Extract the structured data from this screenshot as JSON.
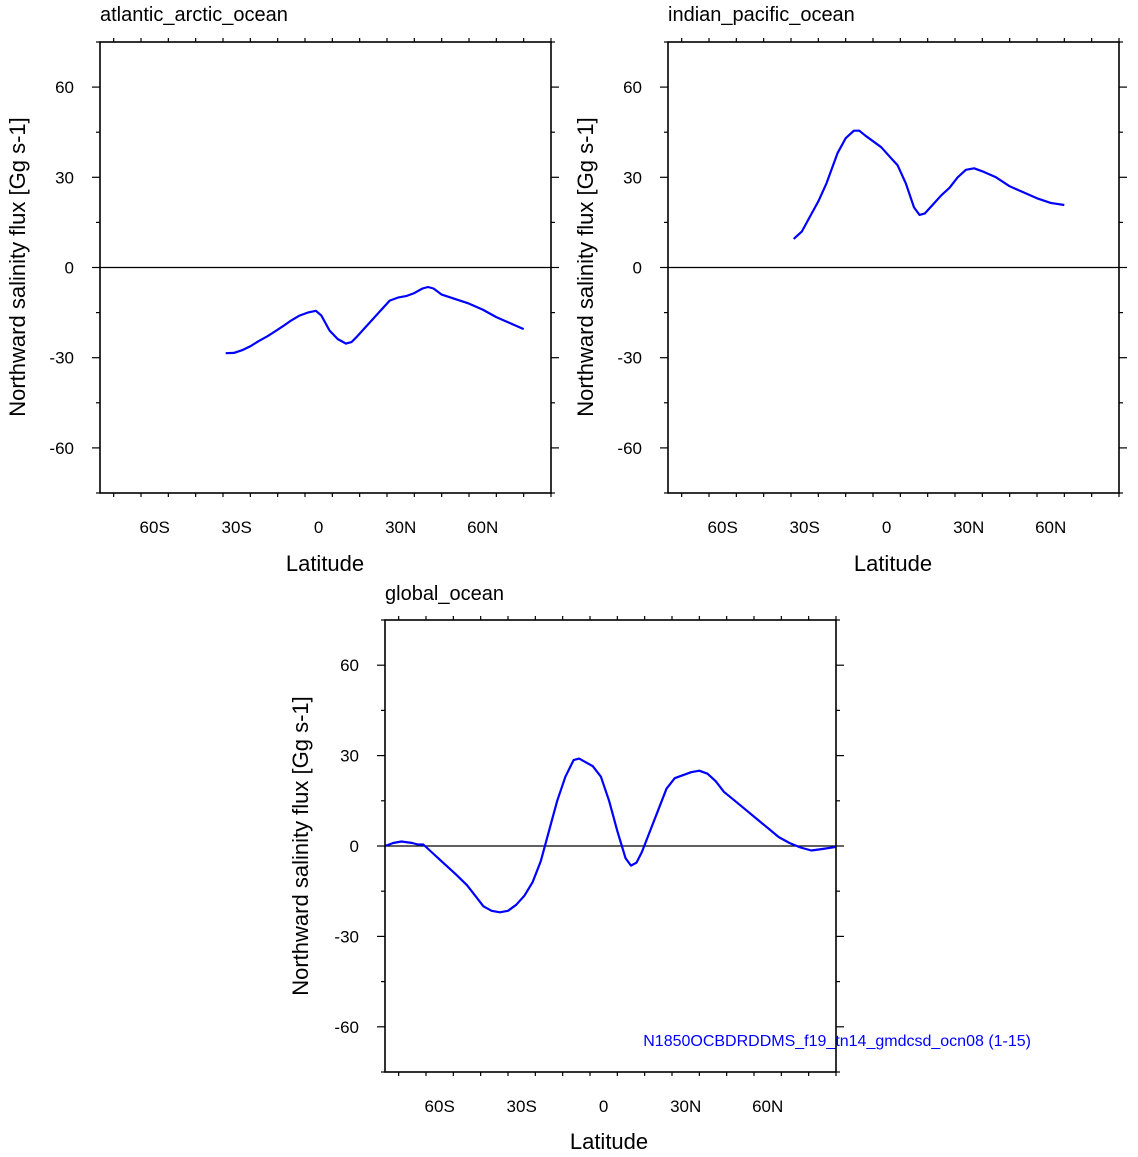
{
  "chart_data": [
    {
      "type": "line",
      "title": "atlantic_arctic_ocean",
      "xlabel": "Latitude",
      "ylabel": "Northward salinity flux [Gg s-1]",
      "xlim": [
        -80,
        85
      ],
      "ylim": [
        -75,
        75
      ],
      "xticks": [
        -60,
        -30,
        0,
        30,
        60
      ],
      "xtick_labels": [
        "60S",
        "30S",
        "0",
        "30N",
        "60N"
      ],
      "yticks": [
        -60,
        -30,
        0,
        30,
        60
      ],
      "ytick_labels": [
        "-60",
        "-30",
        "0",
        "30",
        "60"
      ],
      "zero_line": true,
      "grid": false,
      "series": [
        {
          "color": "#0000ff",
          "x": [
            -34,
            -31,
            -28,
            -25,
            -22,
            -19,
            -16,
            -13,
            -10,
            -7,
            -4,
            -1,
            1,
            4,
            7,
            10,
            12,
            14,
            17,
            20,
            23,
            26,
            29,
            32,
            35,
            38,
            40,
            42,
            45,
            50,
            55,
            60,
            65,
            70,
            75
          ],
          "y": [
            -28.5,
            -28.4,
            -27.5,
            -26.2,
            -24.5,
            -23,
            -21.3,
            -19.5,
            -17.6,
            -16,
            -15,
            -14.4,
            -16,
            -21,
            -23.8,
            -25.3,
            -24.8,
            -23,
            -20,
            -17,
            -14,
            -11,
            -10,
            -9.5,
            -8.5,
            -7,
            -6.5,
            -7,
            -9,
            -10.5,
            -12,
            -14,
            -16.5,
            -18.5,
            -20.5
          ]
        }
      ]
    },
    {
      "type": "line",
      "title": "indian_pacific_ocean",
      "xlabel": "Latitude",
      "ylabel": "Northward salinity flux [Gg s-1]",
      "xlim": [
        -80,
        85
      ],
      "ylim": [
        -75,
        75
      ],
      "xticks": [
        -60,
        -30,
        0,
        30,
        60
      ],
      "xtick_labels": [
        "60S",
        "30S",
        "0",
        "30N",
        "60N"
      ],
      "yticks": [
        -60,
        -30,
        0,
        30,
        60
      ],
      "ytick_labels": [
        "-60",
        "-30",
        "0",
        "30",
        "60"
      ],
      "zero_line": true,
      "grid": false,
      "series": [
        {
          "color": "#0000ff",
          "x": [
            -34,
            -31,
            -28,
            -25,
            -22,
            -20,
            -18,
            -15,
            -12,
            -10,
            -8,
            -5,
            -2,
            1,
            4,
            7,
            10,
            12,
            14,
            17,
            20,
            23,
            26,
            29,
            32,
            35,
            40,
            45,
            50,
            55,
            60,
            65
          ],
          "y": [
            9.5,
            12,
            17,
            22,
            28,
            33,
            38,
            43,
            45.5,
            45.5,
            44,
            42,
            40,
            37,
            34,
            28,
            20,
            17.5,
            18,
            21,
            24,
            26.5,
            30,
            32.5,
            33,
            32,
            30,
            27,
            25,
            23,
            21.5,
            20.8
          ]
        }
      ]
    },
    {
      "type": "line",
      "title": "global_ocean",
      "xlabel": "Latitude",
      "ylabel": "Northward salinity flux [Gg s-1]",
      "xlim": [
        -80,
        85
      ],
      "ylim": [
        -75,
        75
      ],
      "xticks": [
        -60,
        -30,
        0,
        30,
        60
      ],
      "xtick_labels": [
        "60S",
        "30S",
        "0",
        "30N",
        "60N"
      ],
      "yticks": [
        -60,
        -30,
        0,
        30,
        60
      ],
      "ytick_labels": [
        "-60",
        "-30",
        "0",
        "30",
        "60"
      ],
      "zero_line": true,
      "grid": false,
      "annotation": "N1850OCBDRDDMS_f19_tn14_gmdcsd_ocn08 (1-15)",
      "series": [
        {
          "color": "#0000ff",
          "x": [
            -80,
            -77,
            -74,
            -70,
            -68,
            -66,
            -63,
            -60,
            -57,
            -54,
            -50,
            -47,
            -44,
            -41,
            -38,
            -35,
            -32,
            -29,
            -26,
            -23,
            -20,
            -17,
            -14,
            -11,
            -9,
            -7,
            -4,
            -1,
            2,
            5,
            8,
            10,
            12,
            14,
            17,
            20,
            23,
            26,
            29,
            32,
            35,
            38,
            41,
            44,
            48,
            52,
            56,
            60,
            64,
            68,
            72,
            76,
            80,
            85
          ],
          "y": [
            0,
            1,
            1.5,
            1,
            0.5,
            0.5,
            -2,
            -4.5,
            -7,
            -9.5,
            -13,
            -16.5,
            -20,
            -21.5,
            -22,
            -21.5,
            -19.5,
            -16.5,
            -12,
            -5,
            5,
            15,
            23,
            28.5,
            29,
            28,
            26.5,
            23,
            15,
            5,
            -4,
            -6.5,
            -5.5,
            -2,
            5,
            12,
            19,
            22.5,
            23.5,
            24.5,
            25,
            24,
            21.5,
            18,
            15,
            12,
            9,
            6,
            3,
            1,
            -0.5,
            -1.5,
            -1,
            -0.3
          ]
        }
      ]
    }
  ]
}
